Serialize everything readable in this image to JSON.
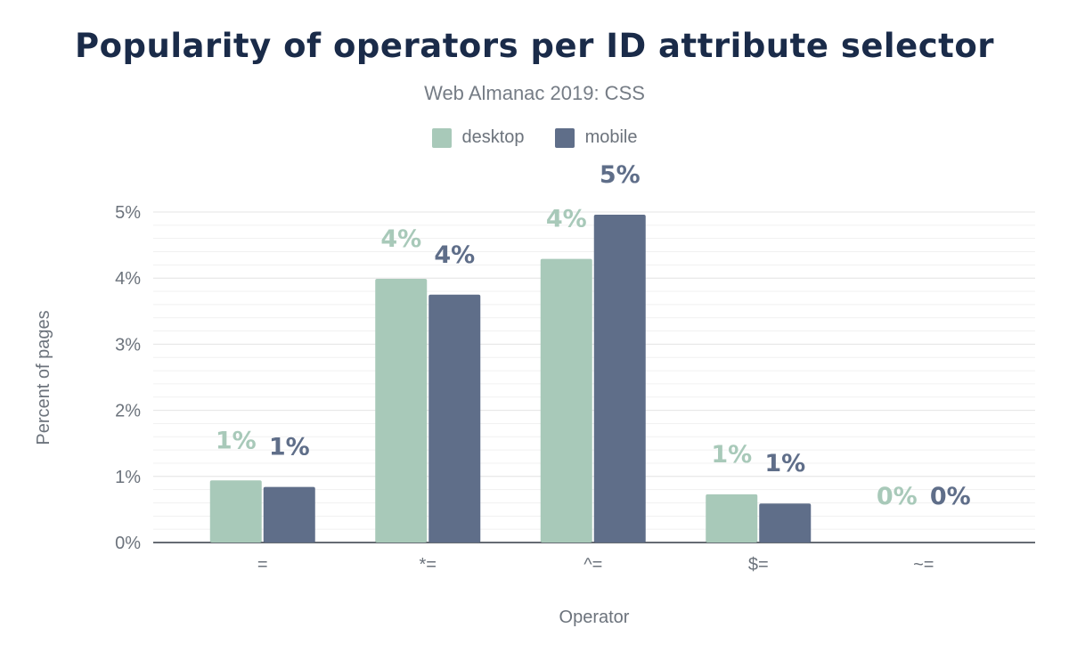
{
  "chart_data": {
    "type": "bar",
    "title": "Popularity of operators per ID attribute selector",
    "subtitle": "Web Almanac 2019: CSS",
    "xlabel": "Operator",
    "ylabel": "Percent of pages",
    "categories": [
      "=",
      "*=",
      "^=",
      "$=",
      "~="
    ],
    "series": [
      {
        "name": "desktop",
        "color": "#a8c9b9",
        "values": [
          0.94,
          3.99,
          4.29,
          0.73,
          0.0
        ],
        "labels": [
          "1%",
          "4%",
          "4%",
          "1%",
          "0%"
        ]
      },
      {
        "name": "mobile",
        "color": "#5f6e89",
        "values": [
          0.84,
          3.75,
          4.96,
          0.59,
          0.0
        ],
        "labels": [
          "1%",
          "4%",
          "5%",
          "1%",
          "0%"
        ]
      }
    ],
    "ylim": [
      0,
      5
    ],
    "yticks": [
      "0%",
      "1%",
      "2%",
      "3%",
      "4%",
      "5%"
    ],
    "grid": true,
    "legend": "top-center"
  }
}
